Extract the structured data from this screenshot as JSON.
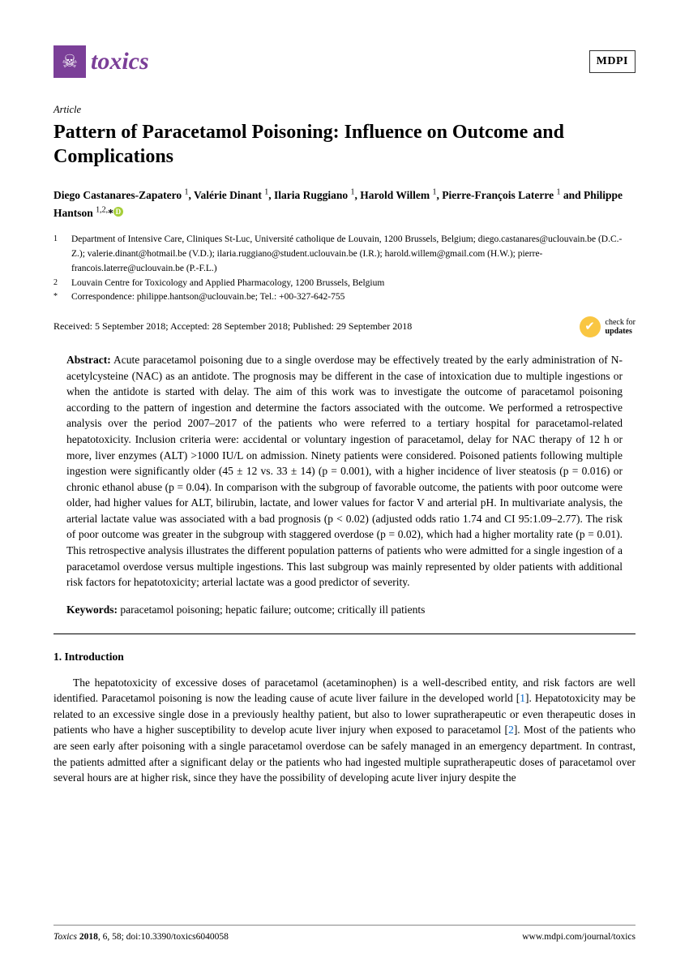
{
  "header": {
    "journal_name": "toxics",
    "publisher": "MDPI"
  },
  "article_type": "Article",
  "title": "Pattern of Paracetamol Poisoning: Influence on Outcome and Complications",
  "authors_html": "Diego Castanares-Zapatero <sup>1</sup>, Valérie Dinant <sup>1</sup>, Ilaria Ruggiano <sup>1</sup>, Harold Willem <sup>1</sup>, Pierre-François Laterre <sup>1</sup> and Philippe Hantson <sup>1,2,</sup>*",
  "affiliations": [
    {
      "num": "1",
      "text": "Department of Intensive Care, Cliniques St-Luc, Université catholique de Louvain, 1200 Brussels, Belgium; diego.castanares@uclouvain.be (D.C.-Z.); valerie.dinant@hotmail.be (V.D.); ilaria.ruggiano@student.uclouvain.be (I.R.); harold.willem@gmail.com (H.W.); pierre-francois.laterre@uclouvain.be (P.-F.L.)"
    },
    {
      "num": "2",
      "text": "Louvain Centre for Toxicology and Applied Pharmacology, 1200 Brussels, Belgium"
    },
    {
      "num": "*",
      "text": "Correspondence: philippe.hantson@uclouvain.be; Tel.: +00-327-642-755"
    }
  ],
  "dates": "Received: 5 September 2018; Accepted: 28 September 2018; Published: 29 September 2018",
  "check_updates": {
    "line1": "check for",
    "line2": "updates"
  },
  "abstract_label": "Abstract:",
  "abstract_text": " Acute paracetamol poisoning due to a single overdose may be effectively treated by the early administration of N-acetylcysteine (NAC) as an antidote. The prognosis may be different in the case of intoxication due to multiple ingestions or when the antidote is started with delay. The aim of this work was to investigate the outcome of paracetamol poisoning according to the pattern of ingestion and determine the factors associated with the outcome. We performed a retrospective analysis over the period 2007–2017 of the patients who were referred to a tertiary hospital for paracetamol-related hepatotoxicity. Inclusion criteria were: accidental or voluntary ingestion of paracetamol, delay for NAC therapy of 12 h or more, liver enzymes (ALT) >1000 IU/L on admission. Ninety patients were considered. Poisoned patients following multiple ingestion were significantly older (45 ± 12 vs. 33 ± 14) (p = 0.001), with a higher incidence of liver steatosis (p = 0.016) or chronic ethanol abuse (p = 0.04). In comparison with the subgroup of favorable outcome, the patients with poor outcome were older, had higher values for ALT, bilirubin, lactate, and lower values for factor V and arterial pH. In multivariate analysis, the arterial lactate value was associated with a bad prognosis (p < 0.02) (adjusted odds ratio 1.74 and CI 95:1.09–2.77). The risk of poor outcome was greater in the subgroup with staggered overdose (p = 0.02), which had a higher mortality rate (p = 0.01). This retrospective analysis illustrates the different population patterns of patients who were admitted for a single ingestion of a paracetamol overdose versus multiple ingestions. This last subgroup was mainly represented by older patients with additional risk factors for hepatotoxicity; arterial lactate was a good predictor of severity.",
  "keywords_label": "Keywords:",
  "keywords_text": " paracetamol poisoning; hepatic failure; outcome; critically ill patients",
  "section_heading": "1. Introduction",
  "intro_pre1": "The hepatotoxicity of excessive doses of paracetamol (acetaminophen) is a well-described entity, and risk factors are well identified. Paracetamol poisoning is now the leading cause of acute liver failure in the developed world [",
  "ref1": "1",
  "intro_mid": "]. Hepatotoxicity may be related to an excessive single dose in a previously healthy patient, but also to lower supratherapeutic or even therapeutic doses in patients who have a higher susceptibility to develop acute liver injury when exposed to paracetamol [",
  "ref2": "2",
  "intro_post": "]. Most of the patients who are seen early after poisoning with a single paracetamol overdose can be safely managed in an emergency department. In contrast, the patients admitted after a significant delay or the patients who had ingested multiple supratherapeutic doses of paracetamol over several hours are at higher risk, since they have the possibility of developing acute liver injury despite the",
  "footer": {
    "left_italic": "Toxics ",
    "left_bold": "2018",
    "left_rest": ", 6, 58; doi:10.3390/toxics6040058",
    "right": "www.mdpi.com/journal/toxics"
  }
}
